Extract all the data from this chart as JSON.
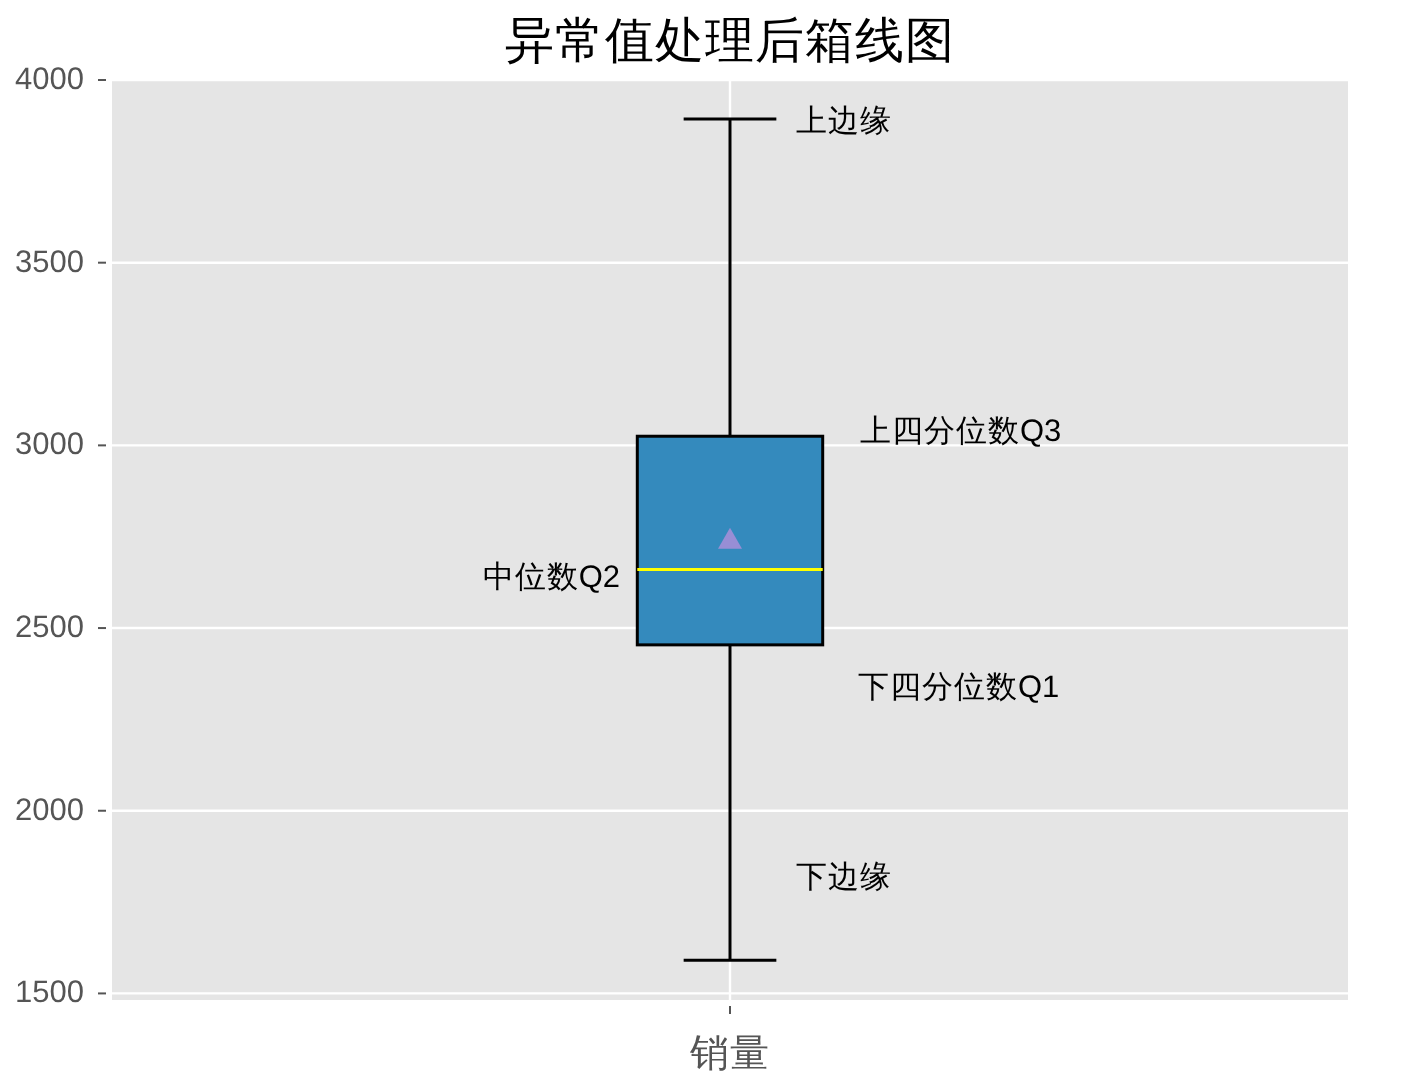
{
  "chart_data": {
    "type": "box",
    "title": "异常值处理后箱线图",
    "categories": [
      "销量"
    ],
    "series": [
      {
        "color": "#348abd",
        "boxes": [
          {
            "low": 1591,
            "q1": 2454,
            "median": 2660,
            "q3": 3025,
            "high": 3893,
            "mean": 2742
          }
        ]
      }
    ],
    "ylim": [
      1482,
      4000
    ],
    "yticks": [
      1500,
      2000,
      2500,
      3000,
      3500,
      4000
    ],
    "grid": true,
    "annotations": [
      "上边缘",
      "上四分位数Q3",
      "中位数Q2",
      "下四分位数Q1",
      "下边缘"
    ]
  }
}
